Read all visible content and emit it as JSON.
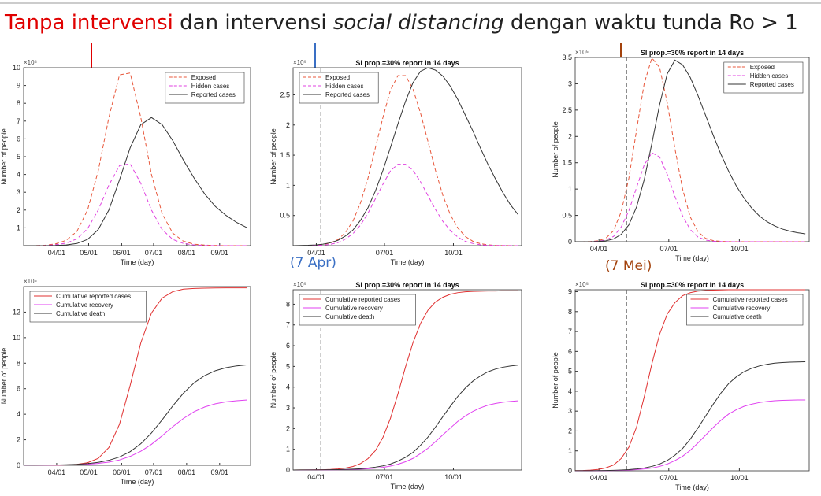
{
  "slide": {
    "title": [
      {
        "text": "Tanpa intervensi",
        "color": "#e00000"
      },
      {
        "text": " dan intervensi "
      },
      {
        "text": "social distancing",
        "italic": true
      },
      {
        "text": " dengan waktu tunda Ro > 1"
      }
    ],
    "annotations": [
      {
        "text": "(7 Apr)",
        "color": "#3a6fc4"
      },
      {
        "text": "(7 Mei)",
        "color": "#a3420c"
      }
    ]
  },
  "chart_data": [
    {
      "type": "line",
      "xlabel": "Time (day)",
      "ylabel": "Number of people",
      "y_multiplier": "×10⁵",
      "legend": "upper right",
      "xlim": [
        "03/01",
        "09/30"
      ],
      "xticks": [
        "04/01",
        "05/01",
        "06/01",
        "07/01",
        "08/01",
        "09/01"
      ],
      "ylim": [
        0,
        10
      ],
      "yticks": [
        1,
        2,
        3,
        4,
        5,
        6,
        7,
        8,
        9,
        10
      ],
      "x": [
        "03/01",
        "03/11",
        "03/21",
        "03/31",
        "04/10",
        "04/20",
        "04/30",
        "05/10",
        "05/20",
        "05/30",
        "06/09",
        "06/19",
        "06/29",
        "07/09",
        "07/19",
        "07/29",
        "08/08",
        "08/18",
        "08/28",
        "09/07",
        "09/17",
        "09/27"
      ],
      "series": [
        {
          "name": "Exposed",
          "color": "#e8583c",
          "style": "dashed",
          "values": [
            0,
            0,
            0.02,
            0.1,
            0.3,
            0.8,
            2.0,
            4.2,
            7.2,
            9.6,
            9.7,
            7.2,
            4.0,
            1.8,
            0.7,
            0.25,
            0.08,
            0.03,
            0.01,
            0,
            0,
            0
          ]
        },
        {
          "name": "Hidden cases",
          "color": "#e040e0",
          "style": "dashed",
          "values": [
            0,
            0,
            0.01,
            0.05,
            0.14,
            0.38,
            0.95,
            2.0,
            3.4,
            4.5,
            4.6,
            3.5,
            2.0,
            0.9,
            0.35,
            0.12,
            0.04,
            0.01,
            0,
            0,
            0,
            0
          ]
        },
        {
          "name": "Reported cases",
          "color": "#333333",
          "style": "solid",
          "values": [
            0,
            0,
            0,
            0.01,
            0.04,
            0.12,
            0.35,
            0.9,
            2.0,
            3.7,
            5.5,
            6.8,
            7.2,
            6.8,
            5.9,
            4.8,
            3.8,
            2.9,
            2.2,
            1.7,
            1.3,
            1.0
          ]
        }
      ]
    },
    {
      "type": "line",
      "title": "SI prop.=30% report in 14 days",
      "xlabel": "Time (day)",
      "ylabel": "Number of people",
      "y_multiplier": "×10⁵",
      "legend": "upper left",
      "vline": "04/07",
      "xlim": [
        "03/01",
        "12/31"
      ],
      "xticks": [
        "04/01",
        "07/01",
        "10/01"
      ],
      "ylim": [
        0,
        2.95
      ],
      "yticks": [
        0.5,
        1,
        1.5,
        2,
        2.5
      ],
      "x": [
        "03/01",
        "03/11",
        "03/21",
        "03/31",
        "04/10",
        "04/20",
        "04/30",
        "05/10",
        "05/20",
        "05/30",
        "06/09",
        "06/19",
        "06/29",
        "07/09",
        "07/19",
        "07/29",
        "08/08",
        "08/18",
        "08/28",
        "09/07",
        "09/17",
        "09/27",
        "10/07",
        "10/17",
        "10/27",
        "11/06",
        "11/16",
        "11/26",
        "12/06",
        "12/16",
        "12/26"
      ],
      "series": [
        {
          "name": "Exposed",
          "color": "#e8583c",
          "style": "dashed",
          "values": [
            0,
            0,
            0,
            0.007,
            0.018,
            0.045,
            0.1,
            0.22,
            0.41,
            0.71,
            1.12,
            1.63,
            2.13,
            2.58,
            2.82,
            2.82,
            2.6,
            2.2,
            1.73,
            1.25,
            0.83,
            0.51,
            0.29,
            0.15,
            0.072,
            0.032,
            0.013,
            0.005,
            0.002,
            0.001,
            0
          ]
        },
        {
          "name": "Hidden cases",
          "color": "#e040e0",
          "style": "dashed",
          "values": [
            0,
            0,
            0,
            0.003,
            0.009,
            0.022,
            0.05,
            0.11,
            0.2,
            0.34,
            0.54,
            0.78,
            1.02,
            1.24,
            1.35,
            1.35,
            1.25,
            1.06,
            0.83,
            0.6,
            0.4,
            0.25,
            0.14,
            0.07,
            0.035,
            0.015,
            0.006,
            0.002,
            0.001,
            0,
            0
          ]
        },
        {
          "name": "Reported cases",
          "color": "#333333",
          "style": "solid",
          "values": [
            0,
            0.003,
            0.006,
            0.012,
            0.025,
            0.048,
            0.089,
            0.16,
            0.26,
            0.42,
            0.63,
            0.91,
            1.25,
            1.63,
            2.02,
            2.39,
            2.7,
            2.89,
            2.95,
            2.91,
            2.81,
            2.64,
            2.42,
            2.16,
            1.9,
            1.62,
            1.35,
            1.11,
            0.88,
            0.68,
            0.52
          ]
        }
      ]
    },
    {
      "type": "line",
      "title": "SI prop.=30% report in 14 days",
      "xlabel": "Time (day)",
      "ylabel": "Number of people",
      "y_multiplier": "×10⁵",
      "legend": "upper right",
      "vline": "05/07",
      "xlim": [
        "03/01",
        "12/31"
      ],
      "xticks": [
        "04/01",
        "07/01",
        "10/01"
      ],
      "ylim": [
        0,
        3.5
      ],
      "yticks": [
        0,
        0.5,
        1,
        1.5,
        2,
        2.5,
        3,
        3.5
      ],
      "x": [
        "03/01",
        "03/11",
        "03/21",
        "03/31",
        "04/10",
        "04/20",
        "04/30",
        "05/10",
        "05/20",
        "05/30",
        "06/09",
        "06/19",
        "06/29",
        "07/09",
        "07/19",
        "07/29",
        "08/08",
        "08/18",
        "08/28",
        "09/07",
        "09/17",
        "09/27",
        "10/07",
        "10/17",
        "10/27",
        "11/06",
        "11/16",
        "11/26",
        "12/06",
        "12/16",
        "12/26"
      ],
      "series": [
        {
          "name": "Exposed",
          "color": "#e8583c",
          "style": "dashed",
          "values": [
            0,
            0,
            0.003,
            0.017,
            0.066,
            0.21,
            0.57,
            1.21,
            2.12,
            3.01,
            3.49,
            3.31,
            2.64,
            1.77,
            1.0,
            0.47,
            0.19,
            0.064,
            0.02,
            0.006,
            0.002,
            0,
            0,
            0,
            0,
            0,
            0,
            0,
            0,
            0,
            0
          ]
        },
        {
          "name": "Hidden cases",
          "color": "#e040e0",
          "style": "dashed",
          "values": [
            0,
            0,
            0.001,
            0.008,
            0.032,
            0.1,
            0.28,
            0.59,
            1.03,
            1.46,
            1.69,
            1.61,
            1.28,
            0.86,
            0.49,
            0.23,
            0.09,
            0.03,
            0.01,
            0.003,
            0.001,
            0,
            0,
            0,
            0,
            0,
            0,
            0,
            0,
            0,
            0
          ]
        },
        {
          "name": "Reported cases",
          "color": "#333333",
          "style": "solid",
          "values": [
            0,
            0,
            0,
            0.005,
            0.017,
            0.052,
            0.14,
            0.32,
            0.66,
            1.18,
            1.87,
            2.6,
            3.19,
            3.45,
            3.36,
            3.12,
            2.78,
            2.4,
            2.02,
            1.66,
            1.34,
            1.06,
            0.83,
            0.64,
            0.49,
            0.38,
            0.3,
            0.24,
            0.2,
            0.17,
            0.15
          ]
        }
      ]
    },
    {
      "type": "line",
      "xlabel": "Time (day)",
      "ylabel": "Number of people",
      "y_multiplier": "×10⁵",
      "legend": "upper left",
      "xlim": [
        "03/01",
        "09/30"
      ],
      "xticks": [
        "04/01",
        "05/01",
        "06/01",
        "07/01",
        "08/01",
        "09/01"
      ],
      "ylim": [
        0,
        14
      ],
      "yticks": [
        0,
        2,
        4,
        6,
        8,
        10,
        12
      ],
      "x": [
        "03/01",
        "03/11",
        "03/21",
        "03/31",
        "04/10",
        "04/20",
        "04/30",
        "05/10",
        "05/20",
        "05/30",
        "06/09",
        "06/19",
        "06/29",
        "07/09",
        "07/19",
        "07/29",
        "08/08",
        "08/18",
        "08/28",
        "09/07",
        "09/17",
        "09/27"
      ],
      "series": [
        {
          "name": "Cumulative reported cases",
          "color": "#e03030",
          "style": "solid",
          "values": [
            0,
            0.002,
            0.004,
            0.01,
            0.028,
            0.075,
            0.2,
            0.54,
            1.39,
            3.22,
            6.26,
            9.59,
            11.93,
            13.1,
            13.6,
            13.8,
            13.85,
            13.88,
            13.89,
            13.9,
            13.9,
            13.9
          ]
        },
        {
          "name": "Cumulative recovery",
          "color": "#e040f0",
          "style": "solid",
          "values": [
            0.003,
            0.006,
            0.01,
            0.017,
            0.029,
            0.051,
            0.087,
            0.15,
            0.25,
            0.42,
            0.7,
            1.1,
            1.64,
            2.31,
            3.02,
            3.67,
            4.2,
            4.57,
            4.82,
            4.97,
            5.06,
            5.12
          ]
        },
        {
          "name": "Cumulative death",
          "color": "#333333",
          "style": "solid",
          "values": [
            0.005,
            0.009,
            0.015,
            0.026,
            0.045,
            0.078,
            0.134,
            0.23,
            0.39,
            0.65,
            1.07,
            1.69,
            2.53,
            3.56,
            4.65,
            5.65,
            6.46,
            7.03,
            7.41,
            7.65,
            7.79,
            7.87
          ]
        }
      ]
    },
    {
      "type": "line",
      "title": "SI prop.=30% report in 14 days",
      "xlabel": "Time (day)",
      "ylabel": "Number of people",
      "y_multiplier": "×10⁵",
      "legend": "upper left",
      "vline": "04/07",
      "xlim": [
        "03/01",
        "12/31"
      ],
      "xticks": [
        "04/01",
        "07/01",
        "10/01"
      ],
      "ylim": [
        0,
        8.7
      ],
      "yticks": [
        0,
        1,
        2,
        3,
        4,
        5,
        6,
        7,
        8
      ],
      "x": [
        "03/01",
        "03/11",
        "03/21",
        "03/31",
        "04/10",
        "04/20",
        "04/30",
        "05/10",
        "05/20",
        "05/30",
        "06/09",
        "06/19",
        "06/29",
        "07/09",
        "07/19",
        "07/29",
        "08/08",
        "08/18",
        "08/28",
        "09/07",
        "09/17",
        "09/27",
        "10/07",
        "10/17",
        "10/27",
        "11/06",
        "11/16",
        "11/26",
        "12/06",
        "12/16",
        "12/26"
      ],
      "series": [
        {
          "name": "Cumulative reported cases",
          "color": "#e03030",
          "style": "solid",
          "values": [
            0.0014,
            0.0026,
            0.0048,
            0.0087,
            0.016,
            0.029,
            0.052,
            0.095,
            0.172,
            0.31,
            0.55,
            0.94,
            1.58,
            2.5,
            3.68,
            4.97,
            6.14,
            7.07,
            7.71,
            8.11,
            8.34,
            8.48,
            8.56,
            8.6,
            8.62,
            8.63,
            8.64,
            8.64,
            8.65,
            8.65,
            8.65
          ]
        },
        {
          "name": "Cumulative recovery",
          "color": "#e040f0",
          "style": "solid",
          "values": [
            0.001,
            0.002,
            0.003,
            0.004,
            0.006,
            0.009,
            0.013,
            0.018,
            0.028,
            0.042,
            0.061,
            0.092,
            0.13,
            0.19,
            0.28,
            0.4,
            0.56,
            0.79,
            1.05,
            1.37,
            1.7,
            2.03,
            2.35,
            2.61,
            2.83,
            3.0,
            3.13,
            3.21,
            3.27,
            3.31,
            3.34
          ]
        },
        {
          "name": "Cumulative death",
          "color": "#333333",
          "style": "solid",
          "values": [
            0.0017,
            0.0026,
            0.0038,
            0.0057,
            0.0086,
            0.013,
            0.019,
            0.028,
            0.042,
            0.063,
            0.093,
            0.14,
            0.2,
            0.29,
            0.43,
            0.61,
            0.85,
            1.19,
            1.59,
            2.07,
            2.58,
            3.08,
            3.56,
            3.96,
            4.29,
            4.54,
            4.74,
            4.87,
            4.96,
            5.02,
            5.06
          ]
        }
      ]
    },
    {
      "type": "line",
      "title": "SI prop.=30% report in 14 days",
      "xlabel": "Time (day)",
      "ylabel": "Number of people",
      "y_multiplier": "×10⁵",
      "legend": "upper right",
      "vline": "05/07",
      "xlim": [
        "03/01",
        "12/31"
      ],
      "xticks": [
        "04/01",
        "07/01",
        "10/01"
      ],
      "ylim": [
        0,
        9.1
      ],
      "yticks": [
        0,
        1,
        2,
        3,
        4,
        5,
        6,
        7,
        8,
        9
      ],
      "x": [
        "03/01",
        "03/11",
        "03/21",
        "03/31",
        "04/10",
        "04/20",
        "04/30",
        "05/10",
        "05/20",
        "05/30",
        "06/09",
        "06/19",
        "06/29",
        "07/09",
        "07/19",
        "07/29",
        "08/08",
        "08/18",
        "08/28",
        "09/07",
        "09/17",
        "09/27",
        "10/07",
        "10/17",
        "10/27",
        "11/06",
        "11/16",
        "11/26",
        "12/06",
        "12/16",
        "12/26"
      ],
      "series": [
        {
          "name": "Cumulative reported cases",
          "color": "#e03030",
          "style": "solid",
          "values": [
            0.0075,
            0.015,
            0.034,
            0.068,
            0.15,
            0.29,
            0.62,
            1.19,
            2.2,
            3.72,
            5.38,
            6.86,
            7.88,
            8.45,
            8.8,
            8.95,
            9.03,
            9.06,
            9.08,
            9.09,
            9.1,
            9.1,
            9.1,
            9.1,
            9.1,
            9.1,
            9.1,
            9.1,
            9.1,
            9.1,
            9.1
          ]
        },
        {
          "name": "Cumulative recovery",
          "color": "#e040f0",
          "style": "solid",
          "values": [
            0.0017,
            0.0027,
            0.0042,
            0.0065,
            0.01,
            0.016,
            0.025,
            0.04,
            0.061,
            0.094,
            0.14,
            0.22,
            0.34,
            0.51,
            0.73,
            1.03,
            1.4,
            1.79,
            2.18,
            2.54,
            2.85,
            3.07,
            3.24,
            3.35,
            3.43,
            3.48,
            3.52,
            3.54,
            3.55,
            3.56,
            3.56
          ]
        },
        {
          "name": "Cumulative death",
          "color": "#333333",
          "style": "solid",
          "values": [
            0.0026,
            0.0041,
            0.0064,
            0.01,
            0.016,
            0.025,
            0.039,
            0.061,
            0.094,
            0.145,
            0.22,
            0.34,
            0.52,
            0.78,
            1.12,
            1.59,
            2.15,
            2.75,
            3.35,
            3.91,
            4.38,
            4.72,
            4.98,
            5.15,
            5.27,
            5.35,
            5.41,
            5.44,
            5.46,
            5.47,
            5.48
          ]
        }
      ]
    }
  ]
}
